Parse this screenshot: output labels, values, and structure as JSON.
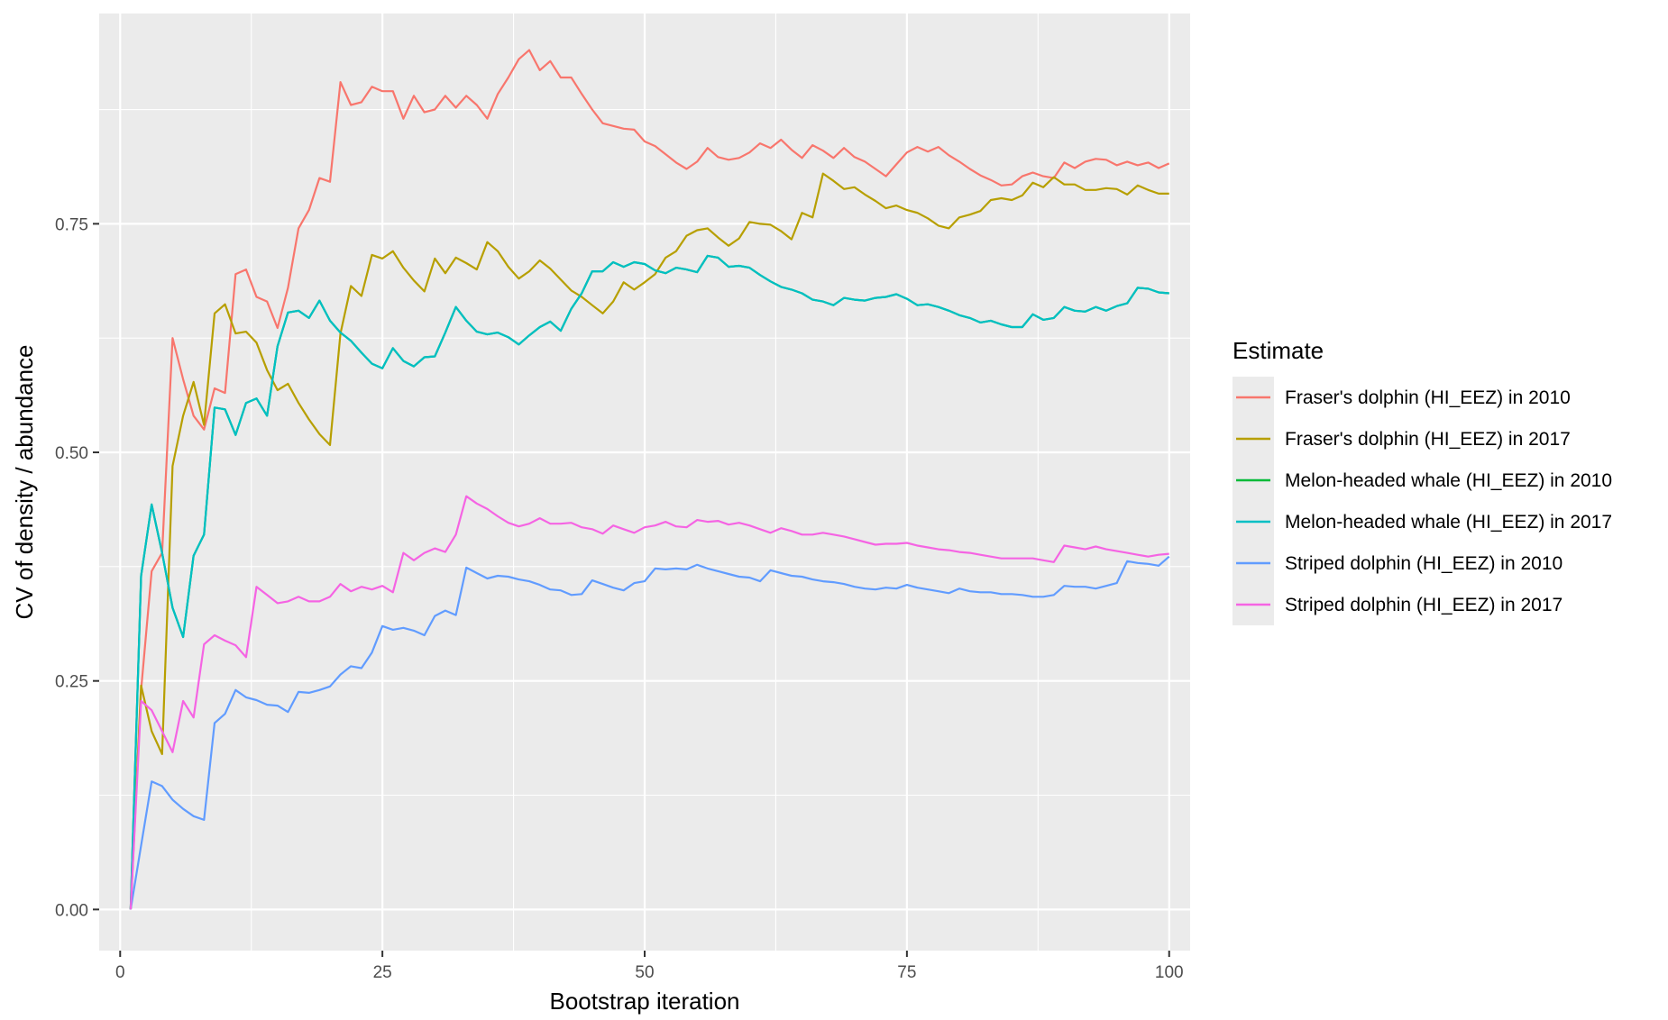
{
  "chart_data": {
    "type": "line",
    "xlabel": "Bootstrap iteration",
    "ylabel": "CV of density / abundance",
    "xlim": [
      -2,
      102
    ],
    "ylim": [
      -0.045,
      0.98
    ],
    "x_ticks": [
      0,
      25,
      50,
      75,
      100
    ],
    "x_tick_labels": [
      "0",
      "25",
      "50",
      "75",
      "100"
    ],
    "y_ticks": [
      0.0,
      0.25,
      0.5,
      0.75
    ],
    "y_tick_labels": [
      "0.00",
      "0.25",
      "0.50",
      "0.75"
    ],
    "grid": true,
    "panel_background": "#ebebeb",
    "legend": {
      "title": "Estimate",
      "position": "right"
    },
    "x": [
      1,
      2,
      3,
      4,
      5,
      6,
      7,
      8,
      9,
      10,
      11,
      12,
      13,
      14,
      15,
      16,
      17,
      18,
      19,
      20,
      21,
      22,
      23,
      24,
      25,
      26,
      27,
      28,
      29,
      30,
      31,
      32,
      33,
      34,
      35,
      36,
      37,
      38,
      39,
      40,
      41,
      42,
      43,
      44,
      45,
      46,
      47,
      48,
      49,
      50,
      51,
      52,
      53,
      54,
      55,
      56,
      57,
      58,
      59,
      60,
      61,
      62,
      63,
      64,
      65,
      66,
      67,
      68,
      69,
      70,
      71,
      72,
      73,
      74,
      75,
      76,
      77,
      78,
      79,
      80,
      81,
      82,
      83,
      84,
      85,
      86,
      87,
      88,
      89,
      90,
      91,
      92,
      93,
      94,
      95,
      96,
      97,
      98,
      99,
      100
    ],
    "series": [
      {
        "name": "Fraser's dolphin (HI_EEZ) in 2010",
        "color": "#F8766D",
        "values": [
          0.0,
          0.24,
          0.37,
          0.39,
          0.625,
          0.58,
          0.54,
          0.525,
          0.57,
          0.565,
          0.695,
          0.7,
          0.67,
          0.665,
          0.636,
          0.68,
          0.745,
          0.765,
          0.8,
          0.796,
          0.905,
          0.88,
          0.883,
          0.9,
          0.895,
          0.895,
          0.865,
          0.89,
          0.872,
          0.875,
          0.89,
          0.877,
          0.89,
          0.88,
          0.865,
          0.892,
          0.91,
          0.93,
          0.94,
          0.918,
          0.928,
          0.91,
          0.91,
          0.892,
          0.875,
          0.86,
          0.857,
          0.854,
          0.853,
          0.84,
          0.835,
          0.826,
          0.817,
          0.81,
          0.818,
          0.833,
          0.823,
          0.82,
          0.822,
          0.828,
          0.838,
          0.833,
          0.842,
          0.831,
          0.822,
          0.836,
          0.83,
          0.822,
          0.833,
          0.823,
          0.818,
          0.81,
          0.802,
          0.815,
          0.828,
          0.834,
          0.829,
          0.834,
          0.825,
          0.818,
          0.81,
          0.803,
          0.798,
          0.792,
          0.793,
          0.802,
          0.806,
          0.802,
          0.8,
          0.817,
          0.811,
          0.818,
          0.821,
          0.82,
          0.814,
          0.818,
          0.814,
          0.817,
          0.811,
          0.816
        ]
      },
      {
        "name": "Fraser's dolphin (HI_EEZ) in 2017",
        "color": "#B79F00",
        "values": [
          0.0,
          0.245,
          0.195,
          0.17,
          0.485,
          0.54,
          0.577,
          0.53,
          0.652,
          0.662,
          0.63,
          0.632,
          0.62,
          0.59,
          0.568,
          0.575,
          0.554,
          0.536,
          0.52,
          0.508,
          0.63,
          0.682,
          0.671,
          0.716,
          0.712,
          0.72,
          0.702,
          0.688,
          0.676,
          0.712,
          0.696,
          0.713,
          0.707,
          0.7,
          0.73,
          0.72,
          0.703,
          0.69,
          0.698,
          0.71,
          0.701,
          0.689,
          0.677,
          0.67,
          0.661,
          0.652,
          0.665,
          0.686,
          0.678,
          0.686,
          0.695,
          0.713,
          0.72,
          0.737,
          0.743,
          0.745,
          0.735,
          0.726,
          0.734,
          0.752,
          0.75,
          0.749,
          0.742,
          0.733,
          0.762,
          0.757,
          0.805,
          0.797,
          0.788,
          0.79,
          0.782,
          0.775,
          0.767,
          0.77,
          0.765,
          0.762,
          0.756,
          0.748,
          0.745,
          0.757,
          0.76,
          0.764,
          0.776,
          0.778,
          0.776,
          0.781,
          0.795,
          0.79,
          0.801,
          0.793,
          0.793,
          0.787,
          0.787,
          0.789,
          0.788,
          0.782,
          0.792,
          0.787,
          0.783,
          0.783
        ]
      },
      {
        "name": "Melon-headed whale (HI_EEZ) in 2010",
        "color": "#00BA38",
        "values": [
          0.0,
          0.365,
          0.443,
          0.39,
          0.33,
          0.298,
          0.387,
          0.41,
          0.549,
          0.547,
          0.519,
          0.554,
          0.559,
          0.54,
          0.616,
          0.653,
          0.655,
          0.647,
          0.666,
          0.644,
          0.631,
          0.622,
          0.609,
          0.597,
          0.592,
          0.614,
          0.6,
          0.594,
          0.604,
          0.605,
          0.631,
          0.659,
          0.644,
          0.632,
          0.629,
          0.631,
          0.626,
          0.618,
          0.628,
          0.637,
          0.643,
          0.633,
          0.657,
          0.674,
          0.698,
          0.698,
          0.708,
          0.703,
          0.708,
          0.706,
          0.699,
          0.696,
          0.702,
          0.7,
          0.697,
          0.715,
          0.713,
          0.703,
          0.704,
          0.702,
          0.694,
          0.687,
          0.681,
          0.678,
          0.674,
          0.667,
          0.665,
          0.661,
          0.669,
          0.667,
          0.666,
          0.669,
          0.67,
          0.673,
          0.668,
          0.661,
          0.662,
          0.659,
          0.655,
          0.65,
          0.647,
          0.642,
          0.644,
          0.64,
          0.637,
          0.637,
          0.651,
          0.645,
          0.647,
          0.659,
          0.655,
          0.654,
          0.659,
          0.655,
          0.66,
          0.663,
          0.68,
          0.679,
          0.675,
          0.674
        ]
      },
      {
        "name": "Melon-headed whale (HI_EEZ) in 2017",
        "color": "#00BFC4",
        "values": [
          0.0,
          0.365,
          0.443,
          0.39,
          0.33,
          0.298,
          0.387,
          0.41,
          0.549,
          0.547,
          0.519,
          0.554,
          0.559,
          0.54,
          0.616,
          0.653,
          0.655,
          0.647,
          0.666,
          0.644,
          0.631,
          0.622,
          0.609,
          0.597,
          0.592,
          0.614,
          0.6,
          0.594,
          0.604,
          0.605,
          0.631,
          0.659,
          0.644,
          0.632,
          0.629,
          0.631,
          0.626,
          0.618,
          0.628,
          0.637,
          0.643,
          0.633,
          0.657,
          0.674,
          0.698,
          0.698,
          0.708,
          0.703,
          0.708,
          0.706,
          0.699,
          0.696,
          0.702,
          0.7,
          0.697,
          0.715,
          0.713,
          0.703,
          0.704,
          0.702,
          0.694,
          0.687,
          0.681,
          0.678,
          0.674,
          0.667,
          0.665,
          0.661,
          0.669,
          0.667,
          0.666,
          0.669,
          0.67,
          0.673,
          0.668,
          0.661,
          0.662,
          0.659,
          0.655,
          0.65,
          0.647,
          0.642,
          0.644,
          0.64,
          0.637,
          0.637,
          0.651,
          0.645,
          0.647,
          0.659,
          0.655,
          0.654,
          0.659,
          0.655,
          0.66,
          0.663,
          0.68,
          0.679,
          0.675,
          0.674
        ]
      },
      {
        "name": "Striped dolphin (HI_EEZ) in 2010",
        "color": "#619CFF",
        "values": [
          0.0,
          0.07,
          0.14,
          0.135,
          0.12,
          0.11,
          0.102,
          0.098,
          0.204,
          0.214,
          0.24,
          0.232,
          0.229,
          0.224,
          0.223,
          0.216,
          0.238,
          0.237,
          0.24,
          0.244,
          0.257,
          0.266,
          0.264,
          0.281,
          0.31,
          0.306,
          0.308,
          0.305,
          0.3,
          0.321,
          0.327,
          0.322,
          0.374,
          0.368,
          0.362,
          0.365,
          0.364,
          0.361,
          0.359,
          0.355,
          0.35,
          0.349,
          0.344,
          0.345,
          0.36,
          0.356,
          0.352,
          0.349,
          0.357,
          0.359,
          0.373,
          0.372,
          0.373,
          0.372,
          0.377,
          0.373,
          0.37,
          0.367,
          0.364,
          0.363,
          0.359,
          0.371,
          0.368,
          0.365,
          0.364,
          0.361,
          0.359,
          0.358,
          0.356,
          0.353,
          0.351,
          0.35,
          0.352,
          0.351,
          0.355,
          0.352,
          0.35,
          0.348,
          0.346,
          0.351,
          0.348,
          0.347,
          0.347,
          0.345,
          0.345,
          0.344,
          0.342,
          0.342,
          0.344,
          0.354,
          0.353,
          0.353,
          0.351,
          0.354,
          0.357,
          0.381,
          0.379,
          0.378,
          0.376,
          0.386
        ]
      },
      {
        "name": "Striped dolphin (HI_EEZ) in 2017",
        "color": "#F564E3",
        "values": [
          0.0,
          0.228,
          0.218,
          0.195,
          0.172,
          0.228,
          0.21,
          0.29,
          0.3,
          0.294,
          0.289,
          0.276,
          0.353,
          0.344,
          0.335,
          0.337,
          0.342,
          0.337,
          0.337,
          0.342,
          0.356,
          0.348,
          0.353,
          0.35,
          0.354,
          0.347,
          0.39,
          0.382,
          0.39,
          0.395,
          0.391,
          0.41,
          0.452,
          0.444,
          0.438,
          0.43,
          0.423,
          0.419,
          0.422,
          0.428,
          0.422,
          0.422,
          0.423,
          0.418,
          0.416,
          0.411,
          0.42,
          0.416,
          0.412,
          0.418,
          0.42,
          0.424,
          0.419,
          0.418,
          0.426,
          0.424,
          0.425,
          0.421,
          0.423,
          0.42,
          0.416,
          0.412,
          0.417,
          0.414,
          0.41,
          0.41,
          0.412,
          0.41,
          0.408,
          0.405,
          0.402,
          0.399,
          0.4,
          0.4,
          0.401,
          0.398,
          0.396,
          0.394,
          0.393,
          0.391,
          0.39,
          0.388,
          0.386,
          0.384,
          0.384,
          0.384,
          0.384,
          0.382,
          0.38,
          0.398,
          0.396,
          0.394,
          0.397,
          0.394,
          0.392,
          0.39,
          0.388,
          0.386,
          0.388,
          0.389
        ]
      }
    ]
  }
}
